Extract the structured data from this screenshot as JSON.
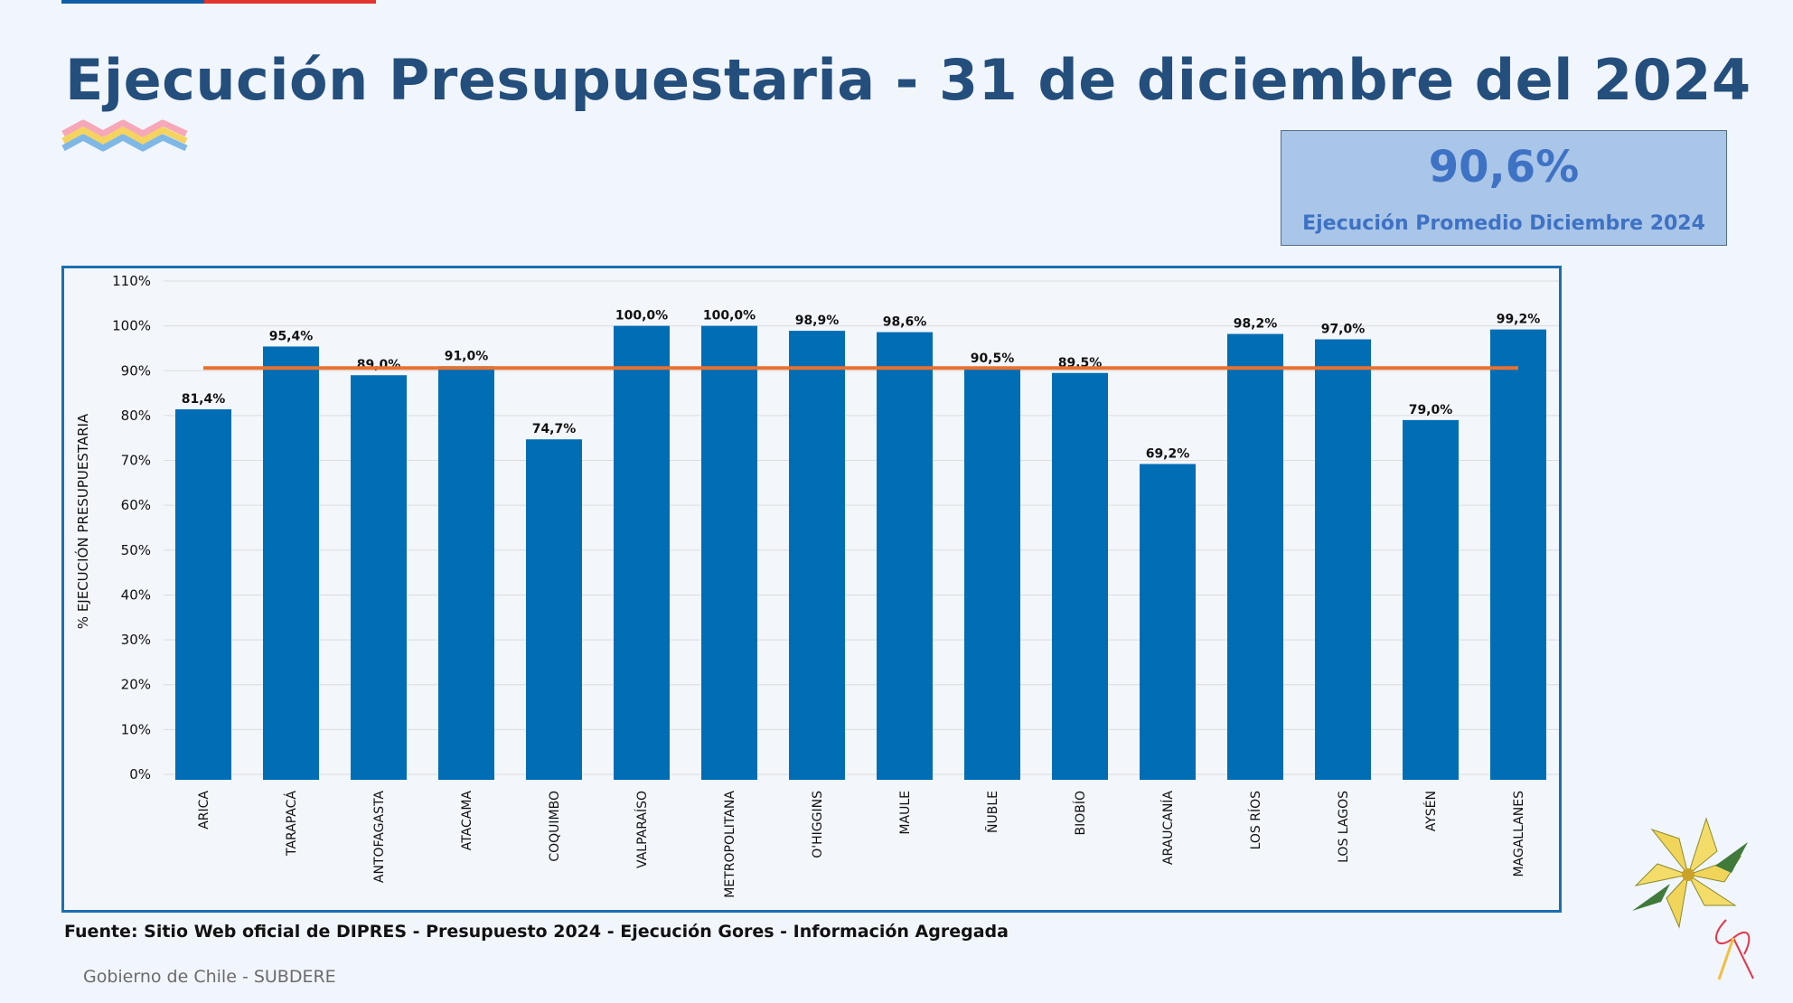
{
  "page": {
    "title": "Ejecución Presupuestaria - 31 de diciembre del 2024",
    "kpi": {
      "value": "90,6%",
      "label": "Ejecución Promedio Diciembre 2024"
    },
    "source": "Fuente: Sitio Web oficial de DIPRES - Presupuesto 2024 - Ejecución Gores - Información Agregada",
    "footer": "Gobierno de Chile - SUBDERE"
  },
  "colors": {
    "bar": "#006db5",
    "average_line": "#e9712f",
    "title": "#244e7c",
    "kpi_text": "#3e72c4",
    "kpi_bg": "#a9c5e8",
    "frame": "#1b6fb0"
  },
  "chart_data": {
    "type": "bar",
    "categories": [
      "ARICA",
      "TARAPACÁ",
      "ANTOFAGASTA",
      "ATACAMA",
      "COQUIMBO",
      "VALPARAÍSO",
      "METROPOLITANA",
      "O'HIGGINS",
      "MAULE",
      "ÑUBLE",
      "BIOBÍO",
      "ARAUCANÍA",
      "LOS RÍOS",
      "LOS LAGOS",
      "AYSÉN",
      "MAGALLANES"
    ],
    "values": [
      81.4,
      95.4,
      89.0,
      91.0,
      74.7,
      100.0,
      100.0,
      98.9,
      98.6,
      90.5,
      89.5,
      69.2,
      98.2,
      97.0,
      79.0,
      99.2
    ],
    "data_labels": [
      "81,4%",
      "95,4%",
      "89,0%",
      "91,0%",
      "74,7%",
      "100,0%",
      "100,0%",
      "98,9%",
      "98,6%",
      "90,5%",
      "89,5%",
      "69,2%",
      "98,2%",
      "97,0%",
      "79,0%",
      "99,2%"
    ],
    "average_line": 90.6,
    "ylabel": "% EJECUCIÓN PRESUPUESTARIA",
    "xlabel": "",
    "ylim": [
      0,
      110
    ],
    "yticks": [
      0,
      10,
      20,
      30,
      40,
      50,
      60,
      70,
      80,
      90,
      100,
      110
    ],
    "ytick_labels": [
      "0%",
      "10%",
      "20%",
      "30%",
      "40%",
      "50%",
      "60%",
      "70%",
      "80%",
      "90%",
      "100%",
      "110%"
    ],
    "grid": true,
    "legend": "none"
  }
}
